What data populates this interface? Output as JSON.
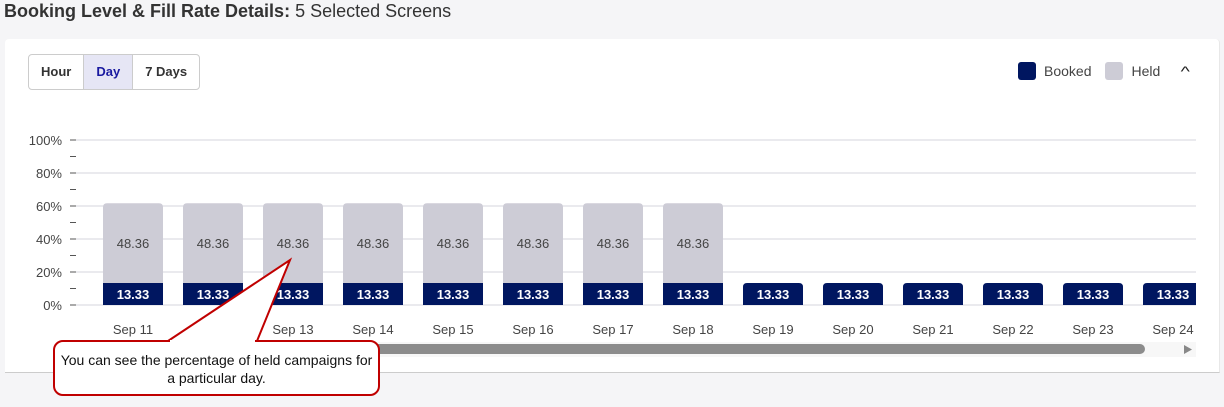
{
  "header": {
    "title_bold": "Booking Level & Fill Rate Details:",
    "title_rest": " 5 Selected Screens"
  },
  "controls": {
    "tabs": [
      {
        "label": "Hour"
      },
      {
        "label": "Day",
        "active": true
      },
      {
        "label": "7 Days"
      }
    ]
  },
  "legend": {
    "items": [
      {
        "label": "Booked",
        "color": "#001660"
      },
      {
        "label": "Held",
        "color": "#cdccd6"
      }
    ]
  },
  "callout": {
    "text": "You can see the percentage of held campaigns for a particular day."
  },
  "chart_data": {
    "type": "bar",
    "stacked": true,
    "categories": [
      "Sep 11",
      "Sep 12",
      "Sep 13",
      "Sep 14",
      "Sep 15",
      "Sep 16",
      "Sep 17",
      "Sep 18",
      "Sep 19",
      "Sep 20",
      "Sep 21",
      "Sep 22",
      "Sep 23",
      "Sep 24"
    ],
    "series": [
      {
        "name": "Booked",
        "color": "#001660",
        "values": [
          13.33,
          13.33,
          13.33,
          13.33,
          13.33,
          13.33,
          13.33,
          13.33,
          13.33,
          13.33,
          13.33,
          13.33,
          13.33,
          13.33
        ]
      },
      {
        "name": "Held",
        "color": "#cdccd6",
        "values": [
          48.36,
          48.36,
          48.36,
          48.36,
          48.36,
          48.36,
          48.36,
          48.36,
          0,
          0,
          0,
          0,
          0,
          0
        ]
      }
    ],
    "yticks": [
      "0%",
      "20%",
      "40%",
      "60%",
      "80%",
      "100%"
    ],
    "ylim": [
      0,
      100
    ],
    "grid": true,
    "legend": "top-right"
  }
}
